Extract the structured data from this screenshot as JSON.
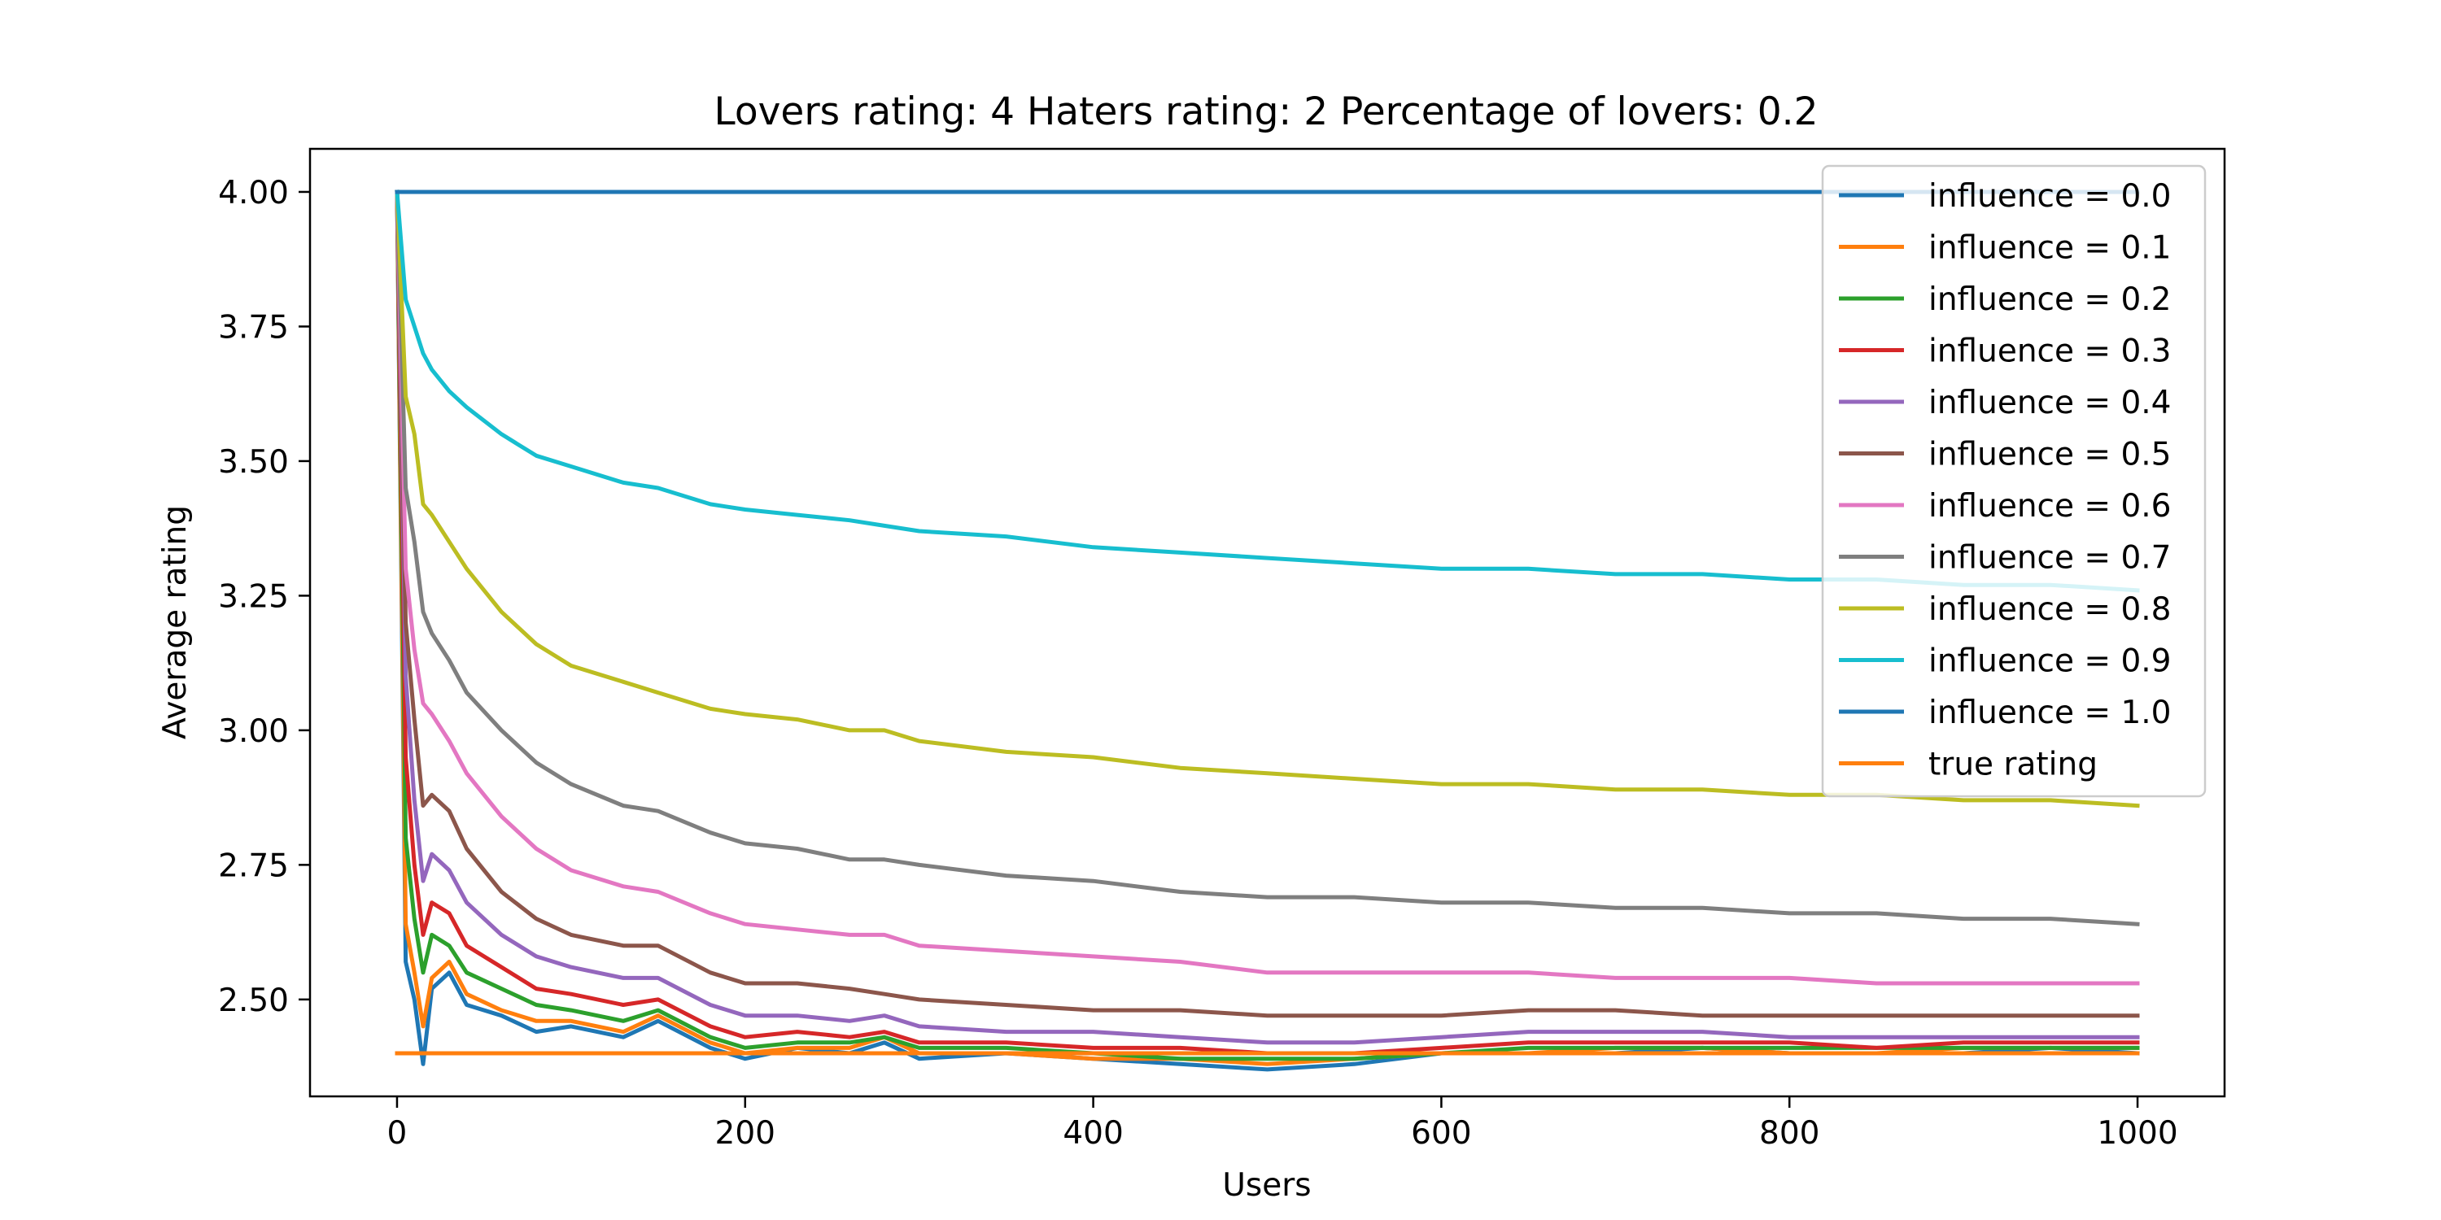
{
  "chart_data": {
    "type": "line",
    "title": "Lovers rating: 4 Haters rating: 2 Percentage of lovers: 0.2",
    "xlabel": "Users",
    "ylabel": "Average rating",
    "xlim": [
      -50,
      1050
    ],
    "ylim": [
      2.32,
      4.08
    ],
    "xticks": [
      0,
      200,
      400,
      600,
      800,
      1000
    ],
    "xtick_labels": [
      "0",
      "200",
      "400",
      "600",
      "800",
      "1000"
    ],
    "yticks": [
      2.5,
      2.75,
      3.0,
      3.25,
      3.5,
      3.75,
      4.0
    ],
    "ytick_labels": [
      "2.50",
      "2.75",
      "3.00",
      "3.25",
      "3.50",
      "3.75",
      "4.00"
    ],
    "grid": false,
    "legend_position": "top-right",
    "series": [
      {
        "name": "influence = 0.0",
        "color": "#1f77b4",
        "x": [
          0,
          5,
          10,
          15,
          20,
          30,
          40,
          60,
          80,
          100,
          130,
          150,
          180,
          200,
          230,
          260,
          280,
          300,
          350,
          400,
          450,
          500,
          550,
          600,
          650,
          700,
          750,
          800,
          850,
          900,
          950,
          1000
        ],
        "y": [
          4.0,
          2.57,
          2.5,
          2.38,
          2.52,
          2.55,
          2.49,
          2.47,
          2.44,
          2.45,
          2.43,
          2.46,
          2.41,
          2.39,
          2.41,
          2.4,
          2.42,
          2.39,
          2.4,
          2.39,
          2.38,
          2.37,
          2.38,
          2.4,
          2.4,
          2.4,
          2.41,
          2.4,
          2.4,
          2.4,
          2.41,
          2.4
        ]
      },
      {
        "name": "influence = 0.1",
        "color": "#ff7f0e",
        "x": [
          0,
          5,
          10,
          15,
          20,
          30,
          40,
          60,
          80,
          100,
          130,
          150,
          180,
          200,
          230,
          260,
          280,
          300,
          350,
          400,
          450,
          500,
          550,
          600,
          650,
          700,
          750,
          800,
          850,
          900,
          950,
          1000
        ],
        "y": [
          4.0,
          2.64,
          2.55,
          2.45,
          2.54,
          2.57,
          2.51,
          2.48,
          2.46,
          2.46,
          2.44,
          2.47,
          2.42,
          2.4,
          2.41,
          2.41,
          2.43,
          2.4,
          2.4,
          2.39,
          2.39,
          2.38,
          2.39,
          2.4,
          2.4,
          2.41,
          2.41,
          2.4,
          2.4,
          2.41,
          2.41,
          2.41
        ]
      },
      {
        "name": "influence = 0.2",
        "color": "#2ca02c",
        "x": [
          0,
          5,
          10,
          15,
          20,
          30,
          40,
          60,
          80,
          100,
          130,
          150,
          180,
          200,
          230,
          260,
          280,
          300,
          350,
          400,
          450,
          500,
          550,
          600,
          650,
          700,
          750,
          800,
          850,
          900,
          950,
          1000
        ],
        "y": [
          4.0,
          2.8,
          2.65,
          2.55,
          2.62,
          2.6,
          2.55,
          2.52,
          2.49,
          2.48,
          2.46,
          2.48,
          2.43,
          2.41,
          2.42,
          2.42,
          2.43,
          2.41,
          2.41,
          2.4,
          2.39,
          2.39,
          2.39,
          2.4,
          2.41,
          2.41,
          2.41,
          2.41,
          2.41,
          2.41,
          2.41,
          2.41
        ]
      },
      {
        "name": "influence = 0.3",
        "color": "#d62728",
        "x": [
          0,
          5,
          10,
          15,
          20,
          30,
          40,
          60,
          80,
          100,
          130,
          150,
          180,
          200,
          230,
          260,
          280,
          300,
          350,
          400,
          450,
          500,
          550,
          600,
          650,
          700,
          750,
          800,
          850,
          900,
          950,
          1000
        ],
        "y": [
          4.0,
          2.95,
          2.75,
          2.62,
          2.68,
          2.66,
          2.6,
          2.56,
          2.52,
          2.51,
          2.49,
          2.5,
          2.45,
          2.43,
          2.44,
          2.43,
          2.44,
          2.42,
          2.42,
          2.41,
          2.41,
          2.4,
          2.4,
          2.41,
          2.42,
          2.42,
          2.42,
          2.42,
          2.41,
          2.42,
          2.42,
          2.42
        ]
      },
      {
        "name": "influence = 0.4",
        "color": "#9467bd",
        "x": [
          0,
          5,
          10,
          15,
          20,
          30,
          40,
          60,
          80,
          100,
          130,
          150,
          180,
          200,
          230,
          260,
          280,
          300,
          350,
          400,
          450,
          500,
          550,
          600,
          650,
          700,
          750,
          800,
          850,
          900,
          950,
          1000
        ],
        "y": [
          4.0,
          3.1,
          2.87,
          2.72,
          2.77,
          2.74,
          2.68,
          2.62,
          2.58,
          2.56,
          2.54,
          2.54,
          2.49,
          2.47,
          2.47,
          2.46,
          2.47,
          2.45,
          2.44,
          2.44,
          2.43,
          2.42,
          2.42,
          2.43,
          2.44,
          2.44,
          2.44,
          2.43,
          2.43,
          2.43,
          2.43,
          2.43
        ]
      },
      {
        "name": "influence = 0.5",
        "color": "#8c564b",
        "x": [
          0,
          5,
          10,
          15,
          20,
          30,
          40,
          60,
          80,
          100,
          130,
          150,
          180,
          200,
          230,
          260,
          280,
          300,
          350,
          400,
          450,
          500,
          550,
          600,
          650,
          700,
          750,
          800,
          850,
          900,
          950,
          1000
        ],
        "y": [
          4.0,
          3.2,
          3.02,
          2.86,
          2.88,
          2.85,
          2.78,
          2.7,
          2.65,
          2.62,
          2.6,
          2.6,
          2.55,
          2.53,
          2.53,
          2.52,
          2.51,
          2.5,
          2.49,
          2.48,
          2.48,
          2.47,
          2.47,
          2.47,
          2.48,
          2.48,
          2.47,
          2.47,
          2.47,
          2.47,
          2.47,
          2.47
        ]
      },
      {
        "name": "influence = 0.6",
        "color": "#e377c2",
        "x": [
          0,
          5,
          10,
          15,
          20,
          30,
          40,
          60,
          80,
          100,
          130,
          150,
          180,
          200,
          230,
          260,
          280,
          300,
          350,
          400,
          450,
          500,
          550,
          600,
          650,
          700,
          750,
          800,
          850,
          900,
          950,
          1000
        ],
        "y": [
          4.0,
          3.3,
          3.15,
          3.05,
          3.03,
          2.98,
          2.92,
          2.84,
          2.78,
          2.74,
          2.71,
          2.7,
          2.66,
          2.64,
          2.63,
          2.62,
          2.62,
          2.6,
          2.59,
          2.58,
          2.57,
          2.55,
          2.55,
          2.55,
          2.55,
          2.54,
          2.54,
          2.54,
          2.53,
          2.53,
          2.53,
          2.53
        ]
      },
      {
        "name": "influence = 0.7",
        "color": "#7f7f7f",
        "x": [
          0,
          5,
          10,
          15,
          20,
          30,
          40,
          60,
          80,
          100,
          130,
          150,
          180,
          200,
          230,
          260,
          280,
          300,
          350,
          400,
          450,
          500,
          550,
          600,
          650,
          700,
          750,
          800,
          850,
          900,
          950,
          1000
        ],
        "y": [
          4.0,
          3.45,
          3.35,
          3.22,
          3.18,
          3.13,
          3.07,
          3.0,
          2.94,
          2.9,
          2.86,
          2.85,
          2.81,
          2.79,
          2.78,
          2.76,
          2.76,
          2.75,
          2.73,
          2.72,
          2.7,
          2.69,
          2.69,
          2.68,
          2.68,
          2.67,
          2.67,
          2.66,
          2.66,
          2.65,
          2.65,
          2.64
        ]
      },
      {
        "name": "influence = 0.8",
        "color": "#bcbd22",
        "x": [
          0,
          5,
          10,
          15,
          20,
          30,
          40,
          60,
          80,
          100,
          130,
          150,
          180,
          200,
          230,
          260,
          280,
          300,
          350,
          400,
          450,
          500,
          550,
          600,
          650,
          700,
          750,
          800,
          850,
          900,
          950,
          1000
        ],
        "y": [
          4.0,
          3.62,
          3.55,
          3.42,
          3.4,
          3.35,
          3.3,
          3.22,
          3.16,
          3.12,
          3.09,
          3.07,
          3.04,
          3.03,
          3.02,
          3.0,
          3.0,
          2.98,
          2.96,
          2.95,
          2.93,
          2.92,
          2.91,
          2.9,
          2.9,
          2.89,
          2.89,
          2.88,
          2.88,
          2.87,
          2.87,
          2.86
        ]
      },
      {
        "name": "influence = 0.9",
        "color": "#17becf",
        "x": [
          0,
          5,
          10,
          15,
          20,
          30,
          40,
          60,
          80,
          100,
          130,
          150,
          180,
          200,
          230,
          260,
          280,
          300,
          350,
          400,
          450,
          500,
          550,
          600,
          650,
          700,
          750,
          800,
          850,
          900,
          950,
          1000
        ],
        "y": [
          4.0,
          3.8,
          3.75,
          3.7,
          3.67,
          3.63,
          3.6,
          3.55,
          3.51,
          3.49,
          3.46,
          3.45,
          3.42,
          3.41,
          3.4,
          3.39,
          3.38,
          3.37,
          3.36,
          3.34,
          3.33,
          3.32,
          3.31,
          3.3,
          3.3,
          3.29,
          3.29,
          3.28,
          3.28,
          3.27,
          3.27,
          3.26
        ]
      },
      {
        "name": "influence = 1.0",
        "color": "#1f77b4",
        "x": [
          0,
          1000
        ],
        "y": [
          4.0,
          4.0
        ]
      },
      {
        "name": "true rating",
        "color": "#ff7f0e",
        "x": [
          0,
          1000
        ],
        "y": [
          2.4,
          2.4
        ]
      }
    ]
  }
}
